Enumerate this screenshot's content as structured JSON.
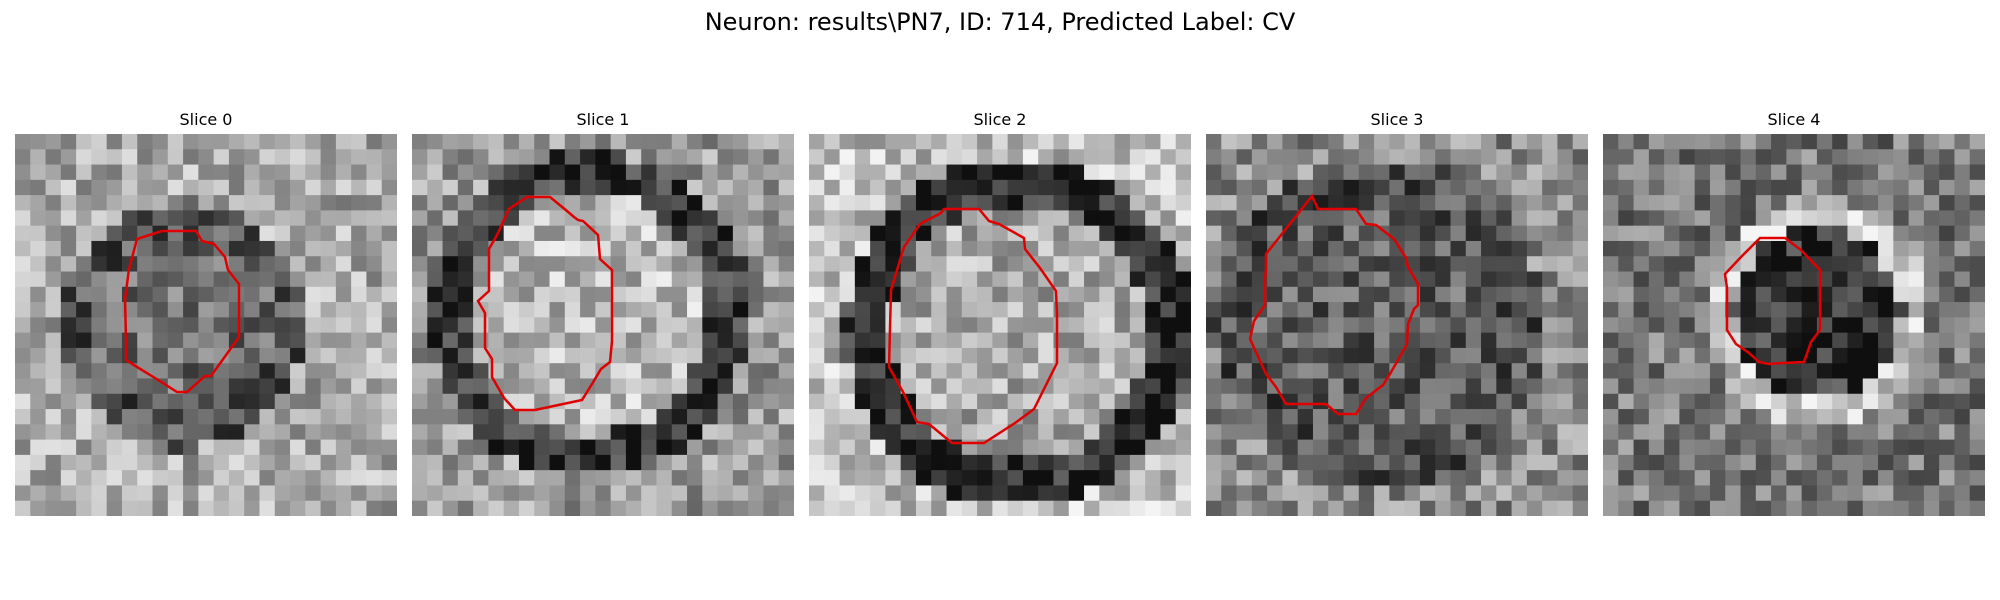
{
  "figure": {
    "title": "Neuron: results\\PN7, ID: 714, Predicted Label: CV"
  },
  "slices": [
    {
      "title": "Slice 0",
      "contour": "#e00000"
    },
    {
      "title": "Slice 1",
      "contour": "#e00000"
    },
    {
      "title": "Slice 2",
      "contour": "#e00000"
    },
    {
      "title": "Slice 3",
      "contour": "#e00000"
    },
    {
      "title": "Slice 4",
      "contour": "#e00000"
    }
  ]
}
